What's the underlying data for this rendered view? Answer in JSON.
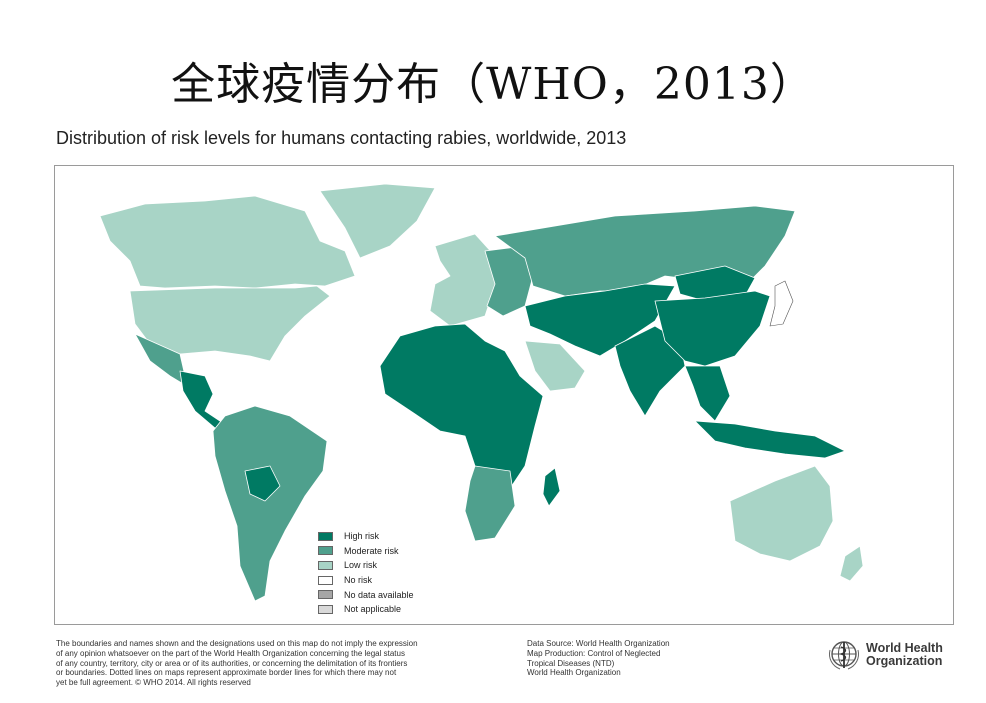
{
  "slide_title": "全球疫情分布（WHO，2013）",
  "map_title": "Distribution of risk levels for humans contacting rabies, worldwide, 2013",
  "legend": [
    {
      "label": "High risk",
      "color": "#007a63"
    },
    {
      "label": "Moderate risk",
      "color": "#4fa08d"
    },
    {
      "label": "Low risk",
      "color": "#a8d4c6"
    },
    {
      "label": "No risk",
      "color": "#ffffff"
    },
    {
      "label": "No data available",
      "color": "#a6a6a6"
    },
    {
      "label": "Not applicable",
      "color": "#d9d9d9"
    }
  ],
  "regions": [
    {
      "name": "Canada",
      "risk": "Low risk"
    },
    {
      "name": "United States",
      "risk": "Low risk"
    },
    {
      "name": "Greenland",
      "risk": "Low risk"
    },
    {
      "name": "Mexico",
      "risk": "Moderate risk"
    },
    {
      "name": "Central America",
      "risk": "High risk"
    },
    {
      "name": "South America",
      "risk": "Moderate risk"
    },
    {
      "name": "Bolivia",
      "risk": "High risk"
    },
    {
      "name": "Western Europe",
      "risk": "Low risk"
    },
    {
      "name": "Eastern Europe",
      "risk": "Moderate risk"
    },
    {
      "name": "Russia",
      "risk": "Moderate risk"
    },
    {
      "name": "Africa",
      "risk": "High risk"
    },
    {
      "name": "Southern Africa",
      "risk": "Moderate risk"
    },
    {
      "name": "Arabian Peninsula",
      "risk": "Low risk"
    },
    {
      "name": "Middle East & Central Asia",
      "risk": "High risk"
    },
    {
      "name": "India",
      "risk": "High risk"
    },
    {
      "name": "China",
      "risk": "High risk"
    },
    {
      "name": "Mongolia",
      "risk": "High risk"
    },
    {
      "name": "Southeast Asia",
      "risk": "High risk"
    },
    {
      "name": "Japan",
      "risk": "No risk"
    },
    {
      "name": "Australia",
      "risk": "Low risk"
    },
    {
      "name": "New Zealand",
      "risk": "Low risk"
    }
  ],
  "disclaimer_lines": [
    "The boundaries and names shown and the designations used on this map do not imply the expression",
    "of any opinion whatsoever on the part of the World Health Organization concerning the legal status",
    "of any country, territory, city or area or of its authorities, or concerning the delimitation of its frontiers",
    "or boundaries. Dotted lines on maps represent approximate border lines for which there may not",
    "yet be full agreement. © WHO 2014. All rights reserved"
  ],
  "credits_lines": [
    "Data Source: World Health Organization",
    "Map Production: Control of Neglected",
    "Tropical Diseases (NTD)",
    "World Health Organization"
  ],
  "logo_line1": "World Health",
  "logo_line2": "Organization"
}
